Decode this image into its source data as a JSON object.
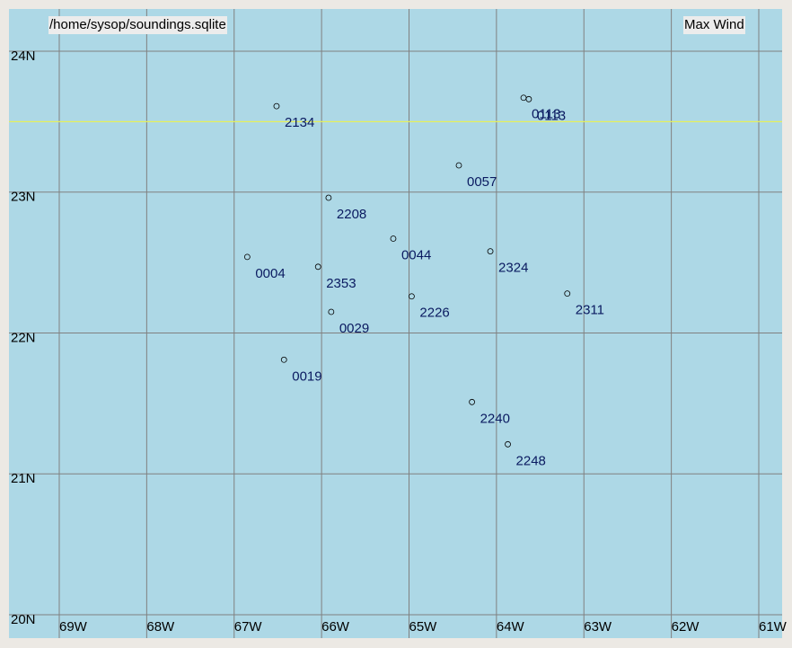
{
  "map": {
    "source": "/home/sysop/soundings.sqlite",
    "field": "Max Wind",
    "xlim": [
      -69.575,
      -60.733
    ],
    "ylim": [
      19.834,
      24.3
    ],
    "xticks": [
      {
        "value": -69,
        "label": "69W"
      },
      {
        "value": -68,
        "label": "68W"
      },
      {
        "value": -67,
        "label": "67W"
      },
      {
        "value": -66,
        "label": "66W"
      },
      {
        "value": -65,
        "label": "65W"
      },
      {
        "value": -64,
        "label": "64W"
      },
      {
        "value": -63,
        "label": "63W"
      },
      {
        "value": -62,
        "label": "62W"
      },
      {
        "value": -61,
        "label": "61W"
      }
    ],
    "yticks": [
      {
        "value": 24,
        "label": "24N"
      },
      {
        "value": 23,
        "label": "23N"
      },
      {
        "value": 22,
        "label": "22N"
      },
      {
        "value": 21,
        "label": "21N"
      },
      {
        "value": 20,
        "label": "20N"
      }
    ],
    "reference_line": {
      "lat": 23.5,
      "color": "#e6f05a"
    },
    "stations": [
      {
        "label": "2134",
        "lon": -66.515,
        "lat": 23.61
      },
      {
        "label": "0113",
        "lon": -63.69,
        "lat": 23.67
      },
      {
        "label": "0113",
        "lon": -63.63,
        "lat": 23.66
      },
      {
        "label": "0057",
        "lon": -64.43,
        "lat": 23.19
      },
      {
        "label": "2208",
        "lon": -65.92,
        "lat": 22.96
      },
      {
        "label": "0044",
        "lon": -65.18,
        "lat": 22.67
      },
      {
        "label": "2324",
        "lon": -64.07,
        "lat": 22.58
      },
      {
        "label": "0004",
        "lon": -66.85,
        "lat": 22.54
      },
      {
        "label": "2353",
        "lon": -66.04,
        "lat": 22.47
      },
      {
        "label": "2226",
        "lon": -64.97,
        "lat": 22.26
      },
      {
        "label": "2311",
        "lon": -63.19,
        "lat": 22.28
      },
      {
        "label": "0029",
        "lon": -65.89,
        "lat": 22.15
      },
      {
        "label": "0019",
        "lon": -66.43,
        "lat": 21.81
      },
      {
        "label": "2240",
        "lon": -64.28,
        "lat": 21.51
      },
      {
        "label": "2248",
        "lon": -63.87,
        "lat": 21.21
      }
    ]
  }
}
